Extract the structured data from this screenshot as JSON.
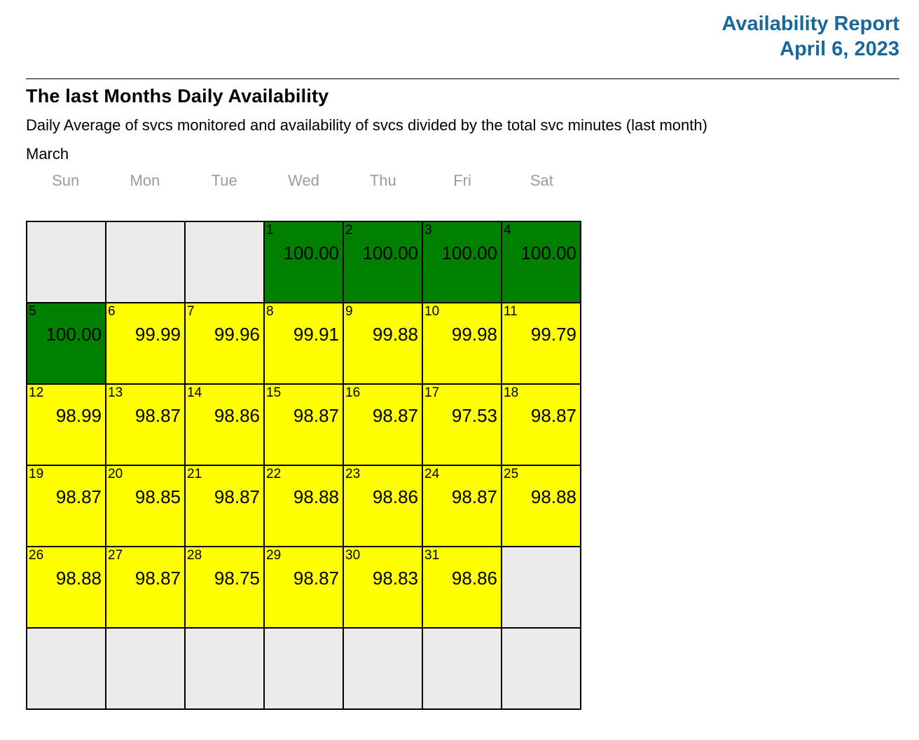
{
  "report": {
    "title": "Availability Report",
    "date": "April 6, 2023"
  },
  "section": {
    "heading": "The last Months Daily Availability",
    "subtitle": "Daily Average of svcs monitored and availability of svcs divided by the total svc minutes (last month)",
    "month_label": "March"
  },
  "calendar": {
    "weekdays": [
      "Sun",
      "Mon",
      "Tue",
      "Wed",
      "Thu",
      "Fri",
      "Sat"
    ],
    "colors": {
      "accent_blue": "#17699c",
      "weekday_gray": "#9b9b9b",
      "green": "#008000",
      "yellow": "#ffff00",
      "empty_gray": "#ebebeb",
      "border_black": "#000000"
    },
    "weeks": [
      [
        {
          "day": "",
          "value": "",
          "status": "empty"
        },
        {
          "day": "",
          "value": "",
          "status": "empty"
        },
        {
          "day": "",
          "value": "",
          "status": "empty"
        },
        {
          "day": "1",
          "value": "100.00",
          "status": "green"
        },
        {
          "day": "2",
          "value": "100.00",
          "status": "green"
        },
        {
          "day": "3",
          "value": "100.00",
          "status": "green"
        },
        {
          "day": "4",
          "value": "100.00",
          "status": "green"
        }
      ],
      [
        {
          "day": "5",
          "value": "100.00",
          "status": "green"
        },
        {
          "day": "6",
          "value": "99.99",
          "status": "yellow"
        },
        {
          "day": "7",
          "value": "99.96",
          "status": "yellow"
        },
        {
          "day": "8",
          "value": "99.91",
          "status": "yellow"
        },
        {
          "day": "9",
          "value": "99.88",
          "status": "yellow"
        },
        {
          "day": "10",
          "value": "99.98",
          "status": "yellow"
        },
        {
          "day": "11",
          "value": "99.79",
          "status": "yellow"
        }
      ],
      [
        {
          "day": "12",
          "value": "98.99",
          "status": "yellow"
        },
        {
          "day": "13",
          "value": "98.87",
          "status": "yellow"
        },
        {
          "day": "14",
          "value": "98.86",
          "status": "yellow"
        },
        {
          "day": "15",
          "value": "98.87",
          "status": "yellow"
        },
        {
          "day": "16",
          "value": "98.87",
          "status": "yellow"
        },
        {
          "day": "17",
          "value": "97.53",
          "status": "yellow"
        },
        {
          "day": "18",
          "value": "98.87",
          "status": "yellow"
        }
      ],
      [
        {
          "day": "19",
          "value": "98.87",
          "status": "yellow"
        },
        {
          "day": "20",
          "value": "98.85",
          "status": "yellow"
        },
        {
          "day": "21",
          "value": "98.87",
          "status": "yellow"
        },
        {
          "day": "22",
          "value": "98.88",
          "status": "yellow"
        },
        {
          "day": "23",
          "value": "98.86",
          "status": "yellow"
        },
        {
          "day": "24",
          "value": "98.87",
          "status": "yellow"
        },
        {
          "day": "25",
          "value": "98.88",
          "status": "yellow"
        }
      ],
      [
        {
          "day": "26",
          "value": "98.88",
          "status": "yellow"
        },
        {
          "day": "27",
          "value": "98.87",
          "status": "yellow"
        },
        {
          "day": "28",
          "value": "98.75",
          "status": "yellow"
        },
        {
          "day": "29",
          "value": "98.87",
          "status": "yellow"
        },
        {
          "day": "30",
          "value": "98.83",
          "status": "yellow"
        },
        {
          "day": "31",
          "value": "98.86",
          "status": "yellow"
        },
        {
          "day": "",
          "value": "",
          "status": "empty"
        }
      ],
      [
        {
          "day": "",
          "value": "",
          "status": "empty"
        },
        {
          "day": "",
          "value": "",
          "status": "empty"
        },
        {
          "day": "",
          "value": "",
          "status": "empty"
        },
        {
          "day": "",
          "value": "",
          "status": "empty"
        },
        {
          "day": "",
          "value": "",
          "status": "empty"
        },
        {
          "day": "",
          "value": "",
          "status": "empty"
        },
        {
          "day": "",
          "value": "",
          "status": "empty"
        }
      ]
    ]
  }
}
